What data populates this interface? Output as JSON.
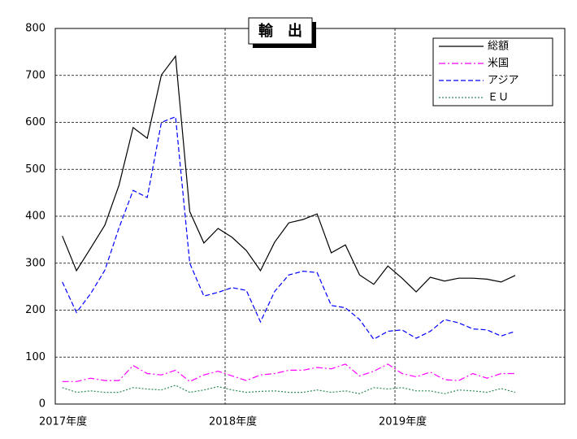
{
  "chart_data": {
    "type": "line",
    "title": "輸　出",
    "categories": [
      "2017年度",
      null,
      null,
      null,
      null,
      null,
      null,
      null,
      null,
      null,
      null,
      null,
      "2018年度",
      null,
      null,
      null,
      null,
      null,
      null,
      null,
      null,
      null,
      null,
      null,
      "2019年度",
      null,
      null,
      null,
      null,
      null,
      null,
      null,
      null,
      null,
      null,
      null
    ],
    "series": [
      {
        "name": "総額",
        "color": "#000000",
        "dash": "",
        "values": [
          358,
          284,
          332,
          381,
          466,
          589,
          566,
          701,
          741,
          410,
          343,
          374,
          355,
          327,
          284,
          345,
          386,
          393,
          405,
          322,
          339,
          275,
          255,
          294,
          268,
          239,
          270,
          262,
          268,
          268,
          266,
          260,
          274,
          null,
          null,
          null
        ]
      },
      {
        "name": "米国",
        "color": "#ff00ff",
        "dash": "8 3 2 3",
        "values": [
          48,
          48,
          55,
          50,
          50,
          82,
          65,
          62,
          72,
          48,
          62,
          70,
          60,
          50,
          62,
          65,
          72,
          72,
          78,
          75,
          85,
          60,
          70,
          85,
          65,
          58,
          68,
          52,
          50,
          65,
          55,
          65,
          65,
          null,
          null,
          null
        ]
      },
      {
        "name": "アジア",
        "color": "#0000ff",
        "dash": "6 3",
        "values": [
          260,
          195,
          235,
          285,
          375,
          455,
          440,
          600,
          612,
          300,
          230,
          238,
          248,
          242,
          175,
          240,
          275,
          283,
          280,
          210,
          205,
          180,
          138,
          155,
          158,
          140,
          155,
          180,
          173,
          160,
          158,
          145,
          155,
          null,
          null,
          null
        ]
      },
      {
        "name": "ＥＵ",
        "color": "#2e8b57",
        "dash": "2 2",
        "values": [
          35,
          25,
          28,
          25,
          25,
          35,
          32,
          30,
          40,
          25,
          30,
          37,
          30,
          25,
          27,
          28,
          25,
          25,
          30,
          25,
          28,
          22,
          35,
          32,
          35,
          28,
          28,
          22,
          30,
          28,
          25,
          33,
          25,
          null,
          null,
          null
        ]
      }
    ],
    "ylim": [
      0,
      800
    ],
    "yticks": [
      0,
      100,
      200,
      300,
      400,
      500,
      600,
      700,
      800
    ],
    "grid": true,
    "legend": "upper right"
  }
}
